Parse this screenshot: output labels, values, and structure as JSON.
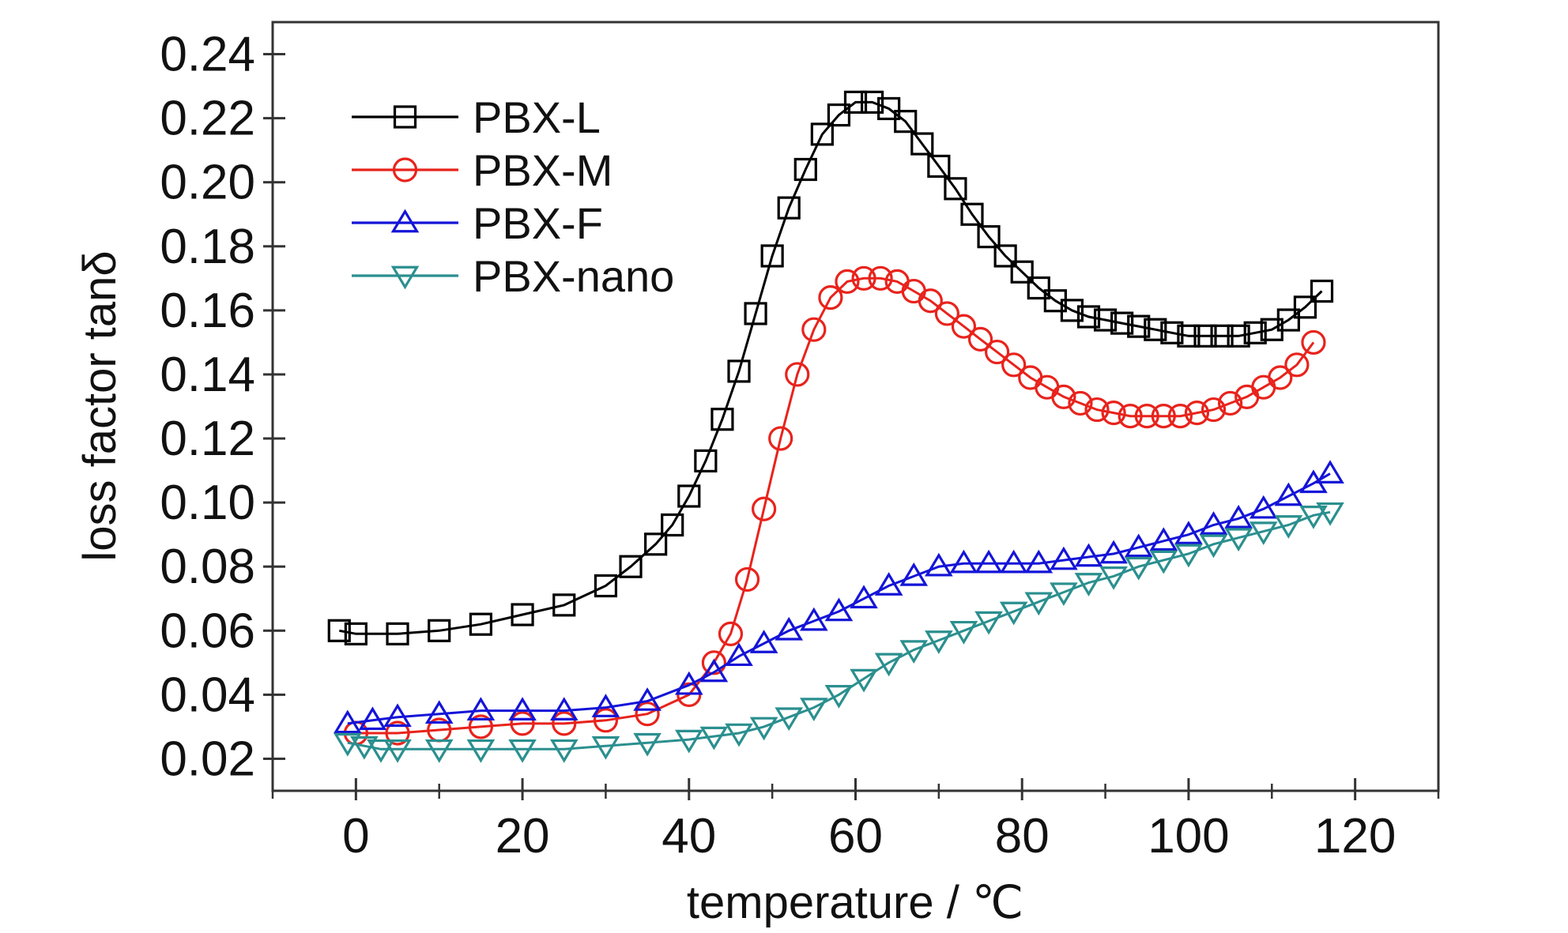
{
  "chart_data": {
    "type": "line",
    "xlabel": "temperature / ℃",
    "ylabel": "loss factor tanδ",
    "xlim": [
      -10,
      130
    ],
    "ylim": [
      0.01,
      0.25
    ],
    "xticks": [
      0,
      20,
      40,
      60,
      80,
      100,
      120
    ],
    "xtick_labels": [
      "0",
      "20",
      "40",
      "60",
      "80",
      "100",
      "120"
    ],
    "yticks": [
      0.02,
      0.04,
      0.06,
      0.08,
      0.1,
      0.12,
      0.14,
      0.16,
      0.18,
      0.2,
      0.22,
      0.24
    ],
    "ytick_labels": [
      "0.02",
      "0.04",
      "0.06",
      "0.08",
      "0.10",
      "0.12",
      "0.14",
      "0.16",
      "0.18",
      "0.20",
      "0.22",
      "0.24"
    ],
    "grid": false,
    "legend_position": "top-left",
    "series": [
      {
        "name": "PBX-L",
        "color": "#000000",
        "marker": "square",
        "x": [
          -2,
          0,
          5,
          10,
          15,
          20,
          25,
          30,
          33,
          36,
          38,
          40,
          42,
          44,
          46,
          48,
          50,
          52,
          54,
          56,
          58,
          60,
          62,
          64,
          66,
          68,
          70,
          72,
          74,
          76,
          78,
          80,
          82,
          84,
          86,
          88,
          90,
          92,
          94,
          96,
          98,
          100,
          102,
          104,
          106,
          108,
          110,
          112,
          114,
          116
        ],
        "y": [
          0.06,
          0.059,
          0.059,
          0.06,
          0.062,
          0.065,
          0.068,
          0.074,
          0.08,
          0.087,
          0.093,
          0.102,
          0.113,
          0.126,
          0.141,
          0.159,
          0.177,
          0.192,
          0.204,
          0.215,
          0.221,
          0.225,
          0.225,
          0.223,
          0.219,
          0.212,
          0.205,
          0.198,
          0.19,
          0.183,
          0.177,
          0.172,
          0.167,
          0.163,
          0.16,
          0.158,
          0.157,
          0.156,
          0.155,
          0.154,
          0.153,
          0.152,
          0.152,
          0.152,
          0.152,
          0.153,
          0.154,
          0.157,
          0.161,
          0.166
        ]
      },
      {
        "name": "PBX-M",
        "color": "#e8231c",
        "marker": "circle",
        "x": [
          0,
          5,
          10,
          15,
          20,
          25,
          30,
          35,
          40,
          43,
          45,
          47,
          49,
          51,
          53,
          55,
          57,
          59,
          61,
          63,
          65,
          67,
          69,
          71,
          73,
          75,
          77,
          79,
          81,
          83,
          85,
          87,
          89,
          91,
          93,
          95,
          97,
          99,
          101,
          103,
          105,
          107,
          109,
          111,
          113,
          115
        ],
        "y": [
          0.028,
          0.028,
          0.029,
          0.03,
          0.031,
          0.031,
          0.032,
          0.034,
          0.04,
          0.05,
          0.059,
          0.076,
          0.098,
          0.12,
          0.14,
          0.154,
          0.164,
          0.169,
          0.17,
          0.17,
          0.169,
          0.166,
          0.163,
          0.159,
          0.155,
          0.151,
          0.147,
          0.143,
          0.139,
          0.136,
          0.133,
          0.131,
          0.129,
          0.128,
          0.127,
          0.127,
          0.127,
          0.127,
          0.128,
          0.129,
          0.131,
          0.133,
          0.136,
          0.139,
          0.143,
          0.15
        ]
      },
      {
        "name": "PBX-F",
        "color": "#1414d8",
        "marker": "triangle-up",
        "x": [
          -1,
          2,
          5,
          10,
          15,
          20,
          25,
          30,
          35,
          40,
          43,
          46,
          49,
          52,
          55,
          58,
          61,
          64,
          67,
          70,
          73,
          76,
          79,
          82,
          85,
          88,
          91,
          94,
          97,
          100,
          103,
          106,
          109,
          112,
          115,
          117
        ],
        "y": [
          0.031,
          0.032,
          0.033,
          0.034,
          0.035,
          0.035,
          0.035,
          0.036,
          0.038,
          0.043,
          0.047,
          0.052,
          0.056,
          0.06,
          0.063,
          0.066,
          0.07,
          0.074,
          0.077,
          0.08,
          0.081,
          0.081,
          0.081,
          0.081,
          0.082,
          0.083,
          0.084,
          0.086,
          0.088,
          0.09,
          0.093,
          0.095,
          0.098,
          0.102,
          0.106,
          0.109
        ]
      },
      {
        "name": "PBX-nano",
        "color": "#2b8f8f",
        "marker": "triangle-down",
        "x": [
          -1,
          1,
          3,
          5,
          10,
          15,
          20,
          25,
          30,
          35,
          40,
          43,
          46,
          49,
          52,
          55,
          58,
          61,
          64,
          67,
          70,
          73,
          76,
          79,
          82,
          85,
          88,
          91,
          94,
          97,
          100,
          103,
          106,
          109,
          112,
          115,
          117
        ],
        "y": [
          0.025,
          0.024,
          0.023,
          0.023,
          0.023,
          0.023,
          0.023,
          0.023,
          0.024,
          0.025,
          0.026,
          0.027,
          0.028,
          0.03,
          0.033,
          0.036,
          0.04,
          0.045,
          0.05,
          0.054,
          0.057,
          0.06,
          0.063,
          0.066,
          0.069,
          0.072,
          0.075,
          0.077,
          0.08,
          0.082,
          0.084,
          0.087,
          0.089,
          0.091,
          0.093,
          0.096,
          0.097
        ]
      }
    ]
  }
}
